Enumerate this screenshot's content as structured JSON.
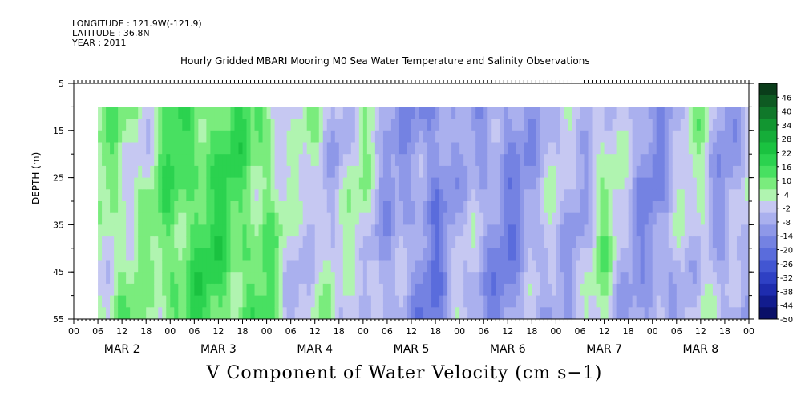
{
  "header": {
    "longitude": "LONGITUDE : 121.9W(-121.9)",
    "latitude": "LATITUDE : 36.8N",
    "year": "YEAR : 2011",
    "title": "Hourly Gridded MBARI Mooring M0 Sea Water Temperature and Salinity Observations"
  },
  "chart_data": {
    "type": "heatmap",
    "title": "Hourly Gridded MBARI Mooring M0 Sea Water Temperature and Salinity Observations",
    "xlabel": "",
    "ylabel": "DEPTH (m)",
    "variable_label": "V Component of Water Velocity (cm s−1)",
    "y_ticks": [
      5,
      15,
      25,
      35,
      45,
      55
    ],
    "ylim": [
      55,
      5
    ],
    "data_depth_range": [
      10,
      55
    ],
    "x_hour_ticks": [
      "00",
      "06",
      "12",
      "18",
      "00",
      "06",
      "12",
      "18",
      "00",
      "06",
      "12",
      "18",
      "00",
      "06",
      "12",
      "18",
      "00",
      "06",
      "12",
      "18",
      "00",
      "06",
      "12",
      "18",
      "00",
      "06",
      "12",
      "18",
      "00"
    ],
    "x_day_labels": [
      "MAR 2",
      "MAR 3",
      "MAR 4",
      "MAR 5",
      "MAR 6",
      "MAR 7",
      "MAR 8"
    ],
    "colorbar": {
      "ticks": [
        "46",
        "40",
        "34",
        "28",
        "22",
        "16",
        "10",
        "4",
        "-2",
        "-8",
        "-14",
        "-20",
        "-26",
        "-32",
        "-38",
        "-44",
        "-50"
      ],
      "range": [
        -50,
        52
      ],
      "colors": [
        "#0a3d1a",
        "#0e5a22",
        "#10782a",
        "#129631",
        "#15ad39",
        "#1ac240",
        "#2bd24f",
        "#48e061",
        "#7aec7d",
        "#b0f4b0",
        "#c6c8f2",
        "#aab0ee",
        "#8e98e8",
        "#7482e2",
        "#5a6cdc",
        "#4256d2",
        "#2e40c4",
        "#1e2cae",
        "#121c8e",
        "#0a1068"
      ]
    },
    "time_profile": [
      {
        "day": 1.25,
        "v": 4
      },
      {
        "day": 1.5,
        "v": 6
      },
      {
        "day": 1.75,
        "v": 2
      },
      {
        "day": 2.0,
        "v": 12
      },
      {
        "day": 2.25,
        "v": 14
      },
      {
        "day": 2.5,
        "v": 14
      },
      {
        "day": 2.75,
        "v": 12
      },
      {
        "day": 3.0,
        "v": 10
      },
      {
        "day": 3.25,
        "v": -4
      },
      {
        "day": 3.5,
        "v": 2
      },
      {
        "day": 3.75,
        "v": -4
      },
      {
        "day": 4.0,
        "v": 2
      },
      {
        "day": 4.25,
        "v": -8
      },
      {
        "day": 4.5,
        "v": -10
      },
      {
        "day": 4.75,
        "v": -16
      },
      {
        "day": 5.0,
        "v": -4
      },
      {
        "day": 5.25,
        "v": -10
      },
      {
        "day": 5.5,
        "v": -14
      },
      {
        "day": 5.75,
        "v": -8
      },
      {
        "day": 6.0,
        "v": -4
      },
      {
        "day": 6.25,
        "v": -6
      },
      {
        "day": 6.5,
        "v": 4
      },
      {
        "day": 6.75,
        "v": -6
      },
      {
        "day": 7.0,
        "v": -12
      },
      {
        "day": 7.25,
        "v": -6
      },
      {
        "day": 7.5,
        "v": 2
      },
      {
        "day": 7.75,
        "v": -10
      },
      {
        "day": 8.0,
        "v": -4
      }
    ]
  }
}
